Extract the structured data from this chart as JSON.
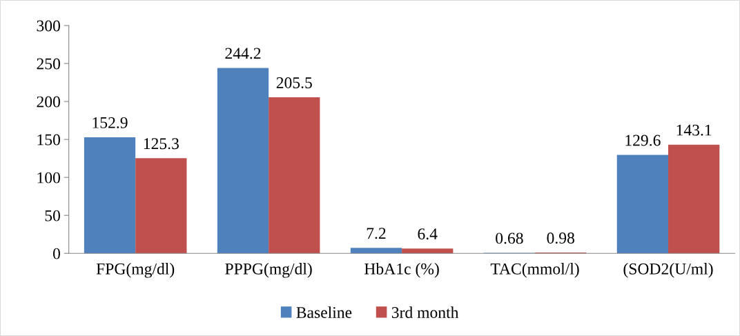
{
  "chart_data": {
    "type": "bar",
    "categories": [
      "FPG(mg/dl)",
      "PPPG(mg/dl)",
      "HbA1c (%)",
      "TAC(mmol/l)",
      "(SOD2(U/ml)"
    ],
    "series": [
      {
        "name": "Baseline",
        "color": "#4f81bd",
        "values": [
          152.9,
          244.2,
          7.2,
          0.68,
          129.6
        ]
      },
      {
        "name": "3rd month",
        "color": "#c0504d",
        "values": [
          125.3,
          205.5,
          6.4,
          0.98,
          143.1
        ]
      }
    ],
    "ylim": [
      0,
      300
    ],
    "yticks": [
      0,
      50,
      100,
      150,
      200,
      250,
      300
    ],
    "grid": false,
    "legend": "bottom",
    "data_labels": true
  }
}
